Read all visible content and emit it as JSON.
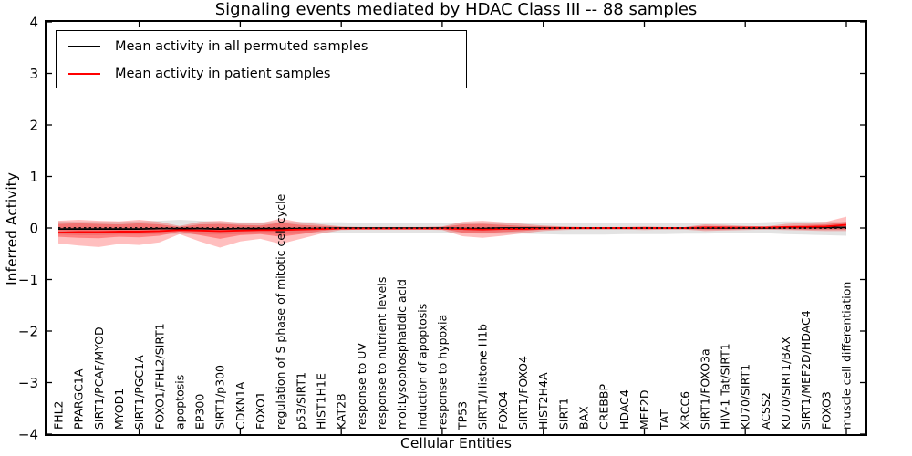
{
  "title": "Signaling events mediated by HDAC Class III -- 88 samples",
  "legend": {
    "items": [
      {
        "label": "Mean activity in all permuted samples",
        "color": "#000000"
      },
      {
        "label": "Mean activity in patient samples",
        "color": "#ff0000"
      }
    ]
  },
  "axes": {
    "ylabel": "Inferred Activity",
    "xlabel": "Cellular Entities",
    "yticks": [
      {
        "label": "4",
        "value": 4
      },
      {
        "label": "3",
        "value": 3
      },
      {
        "label": "2",
        "value": 2
      },
      {
        "label": "1",
        "value": 1
      },
      {
        "label": "0",
        "value": 0
      },
      {
        "label": "−1",
        "value": -1
      },
      {
        "label": "−2",
        "value": -2
      },
      {
        "label": "−3",
        "value": -3
      },
      {
        "label": "−4",
        "value": -4
      }
    ]
  },
  "chart_data": {
    "type": "line",
    "title": "Signaling events mediated by HDAC Class III -- 88 samples",
    "xlabel": "Cellular Entities",
    "ylabel": "Inferred Activity",
    "ylim": [
      -4,
      4
    ],
    "grid": false,
    "legend_position": "upper left",
    "sample_count": 88,
    "categories": [
      "FHL2",
      "PPARGC1A",
      "SIRT1/PCAF/MYOD",
      "MYOD1",
      "SIRT1/PGC1A",
      "FOXO1/FHL2/SIRT1",
      "apoptosis",
      "EP300",
      "SIRT1/p300",
      "CDKN1A",
      "FOXO1",
      "regulation of S phase of mitotic cell cycle",
      "p53/SIRT1",
      "HIST1H1E",
      "KAT2B",
      "response to UV",
      "response to nutrient levels",
      "mol:Lysophosphatidic acid",
      "induction of apoptosis",
      "response to hypoxia",
      "TP53",
      "SIRT1/Histone H1b",
      "FOXO4",
      "SIRT1/FOXO4",
      "HIST2H4A",
      "SIRT1",
      "BAX",
      "CREBBP",
      "HDAC4",
      "MEF2D",
      "TAT",
      "XRCC6",
      "SIRT1/FOXO3a",
      "HIV-1 Tat/SIRT1",
      "KU70/SIRT1",
      "ACSS2",
      "KU70/SIRT1/BAX",
      "SIRT1/MEF2D/HDAC4",
      "FOXO3",
      "muscle cell differentiation"
    ],
    "x_major_tick_indices": [
      4,
      9,
      14,
      19,
      24,
      29,
      34,
      39
    ],
    "series": [
      {
        "name": "Mean activity in all permuted samples",
        "color": "#000000",
        "style": "solid",
        "width": 1.7,
        "values": [
          -0.02,
          -0.02,
          -0.02,
          -0.02,
          -0.02,
          -0.01,
          -0.01,
          -0.01,
          -0.02,
          -0.01,
          -0.01,
          -0.01,
          -0.01,
          -0.01,
          0,
          0,
          0,
          0,
          0,
          0,
          -0.01,
          -0.01,
          0,
          0,
          0,
          0,
          0,
          0,
          0,
          0,
          0,
          0,
          0,
          0,
          0,
          0,
          0.01,
          0.01,
          0.01,
          0.01
        ]
      },
      {
        "name": "Mean activity in patient samples",
        "color": "#ff0000",
        "style": "solid",
        "width": 1.9,
        "values": [
          -0.09,
          -0.08,
          -0.08,
          -0.07,
          -0.07,
          -0.06,
          -0.04,
          -0.05,
          -0.06,
          -0.05,
          -0.04,
          -0.04,
          -0.03,
          -0.02,
          -0.01,
          -0.01,
          -0.01,
          -0.01,
          -0.01,
          -0.01,
          -0.02,
          -0.03,
          -0.02,
          -0.02,
          -0.01,
          0,
          0,
          0,
          0,
          0,
          0,
          0,
          0.01,
          0.01,
          0.01,
          0.01,
          0.02,
          0.02,
          0.03,
          0.06
        ]
      },
      {
        "name": "zero reference",
        "color": "#111111",
        "style": "dotted",
        "width": 1.9,
        "values": [
          0,
          0,
          0,
          0,
          0,
          0,
          0,
          0,
          0,
          0,
          0,
          0,
          0,
          0,
          0,
          0,
          0,
          0,
          0,
          0,
          0,
          0,
          0,
          0,
          0,
          0,
          0,
          0,
          0,
          0,
          0,
          0,
          0,
          0,
          0,
          0,
          0,
          0,
          0,
          0
        ]
      }
    ],
    "bands": [
      {
        "name": "permuted activity range",
        "color": "#999999",
        "alpha": 0.28,
        "top": [
          0.13,
          0.12,
          0.12,
          0.12,
          0.13,
          0.14,
          0.16,
          0.14,
          0.12,
          0.11,
          0.11,
          0.12,
          0.12,
          0.11,
          0.11,
          0.1,
          0.1,
          0.1,
          0.1,
          0.1,
          0.1,
          0.11,
          0.11,
          0.1,
          0.1,
          0.1,
          0.1,
          0.1,
          0.1,
          0.1,
          0.1,
          0.1,
          0.1,
          0.1,
          0.1,
          0.11,
          0.13,
          0.13,
          0.12,
          0.12
        ],
        "bottom": [
          -0.13,
          -0.14,
          -0.14,
          -0.13,
          -0.13,
          -0.12,
          -0.12,
          -0.13,
          -0.13,
          -0.12,
          -0.11,
          -0.12,
          -0.11,
          -0.1,
          -0.1,
          -0.09,
          -0.09,
          -0.09,
          -0.09,
          -0.1,
          -0.1,
          -0.11,
          -0.11,
          -0.11,
          -0.12,
          -0.13,
          -0.13,
          -0.13,
          -0.12,
          -0.12,
          -0.12,
          -0.11,
          -0.11,
          -0.1,
          -0.1,
          -0.1,
          -0.12,
          -0.13,
          -0.14,
          -0.15
        ]
      },
      {
        "name": "patient activity range (outer)",
        "color": "#ff0000",
        "alpha": 0.25,
        "top": [
          0.14,
          0.16,
          0.14,
          0.13,
          0.16,
          0.12,
          0.04,
          0.12,
          0.14,
          0.1,
          0.09,
          0.18,
          0.11,
          0.07,
          0.03,
          0.02,
          0.02,
          0.02,
          0.02,
          0.03,
          0.12,
          0.14,
          0.11,
          0.08,
          0.05,
          0.03,
          0.02,
          0.02,
          0.02,
          0.03,
          0.02,
          0.02,
          0.07,
          0.06,
          0.04,
          0.03,
          0.08,
          0.1,
          0.12,
          0.22
        ],
        "bottom": [
          -0.3,
          -0.34,
          -0.37,
          -0.31,
          -0.33,
          -0.28,
          -0.12,
          -0.26,
          -0.38,
          -0.26,
          -0.21,
          -0.31,
          -0.21,
          -0.11,
          -0.04,
          -0.03,
          -0.03,
          -0.03,
          -0.03,
          -0.04,
          -0.16,
          -0.19,
          -0.15,
          -0.1,
          -0.06,
          -0.04,
          -0.03,
          -0.03,
          -0.03,
          -0.04,
          -0.03,
          -0.03,
          -0.06,
          -0.05,
          -0.04,
          -0.03,
          -0.04,
          -0.05,
          -0.06,
          -0.06
        ]
      },
      {
        "name": "patient activity range (inner)",
        "color": "#ff0000",
        "alpha": 0.32,
        "top": [
          0.08,
          0.09,
          0.08,
          0.07,
          0.09,
          0.07,
          0.02,
          0.07,
          0.08,
          0.06,
          0.05,
          0.1,
          0.06,
          0.04,
          0.02,
          0.01,
          0.01,
          0.01,
          0.01,
          0.02,
          0.07,
          0.08,
          0.06,
          0.04,
          0.03,
          0.02,
          0.01,
          0.01,
          0.01,
          0.02,
          0.01,
          0.01,
          0.04,
          0.03,
          0.02,
          0.02,
          0.04,
          0.06,
          0.07,
          0.12
        ],
        "bottom": [
          -0.17,
          -0.19,
          -0.2,
          -0.17,
          -0.18,
          -0.15,
          -0.07,
          -0.14,
          -0.21,
          -0.14,
          -0.12,
          -0.17,
          -0.12,
          -0.06,
          -0.02,
          -0.02,
          -0.02,
          -0.02,
          -0.02,
          -0.02,
          -0.09,
          -0.1,
          -0.08,
          -0.06,
          -0.03,
          -0.02,
          -0.02,
          -0.02,
          -0.02,
          -0.02,
          -0.02,
          -0.02,
          -0.03,
          -0.03,
          -0.02,
          -0.02,
          -0.02,
          -0.03,
          -0.03,
          -0.03
        ]
      }
    ]
  }
}
